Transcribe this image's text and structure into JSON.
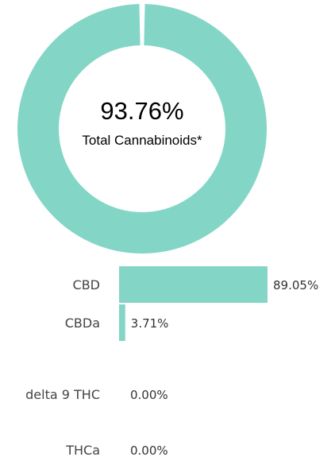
{
  "colors": {
    "accent": "#83d6c5",
    "text": "#333333"
  },
  "chart_data": [
    {
      "type": "pie",
      "values": [
        93.76,
        6.24
      ],
      "center_value": "93.76%",
      "center_label": "Total Cannabinoids*"
    },
    {
      "type": "bar",
      "orientation": "horizontal",
      "categories": [
        "CBD",
        "CBDa",
        "delta 9 THC",
        "THCa"
      ],
      "values": [
        89.05,
        3.71,
        0.0,
        0.0
      ],
      "value_labels": [
        "89.05%",
        "3.71%",
        "0.00%",
        "0.00%"
      ],
      "xlim": [
        0,
        100
      ]
    }
  ]
}
